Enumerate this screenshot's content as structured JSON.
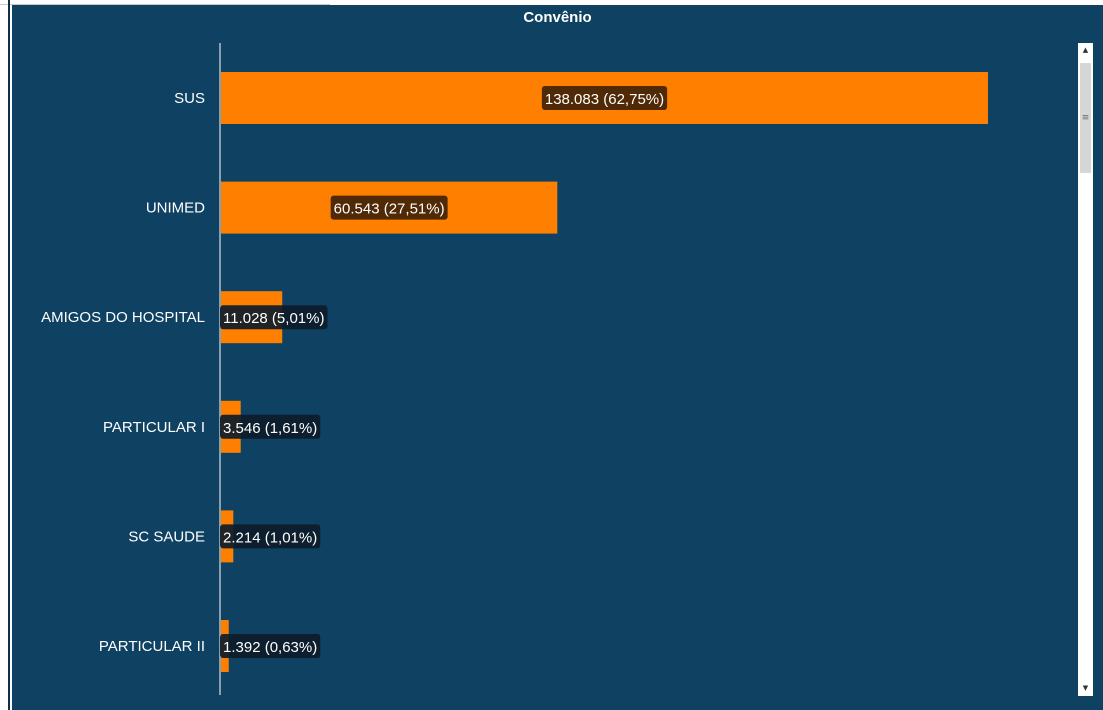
{
  "chart_data": {
    "type": "bar",
    "orientation": "horizontal",
    "title": "Convênio",
    "categories": [
      "SUS",
      "UNIMED",
      "AMIGOS DO HOSPITAL",
      "PARTICULAR I",
      "SC SAUDE",
      "PARTICULAR II"
    ],
    "values": [
      138083,
      60543,
      11028,
      3546,
      2214,
      1392
    ],
    "labels": [
      "138.083 (62,75%)",
      "60.543 (27,51%)",
      "11.028 (5,01%)",
      "3.546 (1,61%)",
      "2.214 (1,01%)",
      "1.392 (0,63%)"
    ],
    "percentages": [
      62.75,
      27.51,
      5.01,
      1.61,
      1.01,
      0.63
    ],
    "xlim": [
      0,
      138083
    ],
    "grid": false
  },
  "colors": {
    "background": "#0e4162",
    "bar": "#ff8000",
    "text": "#ffffff",
    "axis": "#ffffff"
  },
  "scrollbar": {
    "up_icon": "scroll-up-arrow-icon",
    "down_icon": "scroll-down-arrow-icon",
    "thumb_icon": "scroll-grip-icon"
  }
}
